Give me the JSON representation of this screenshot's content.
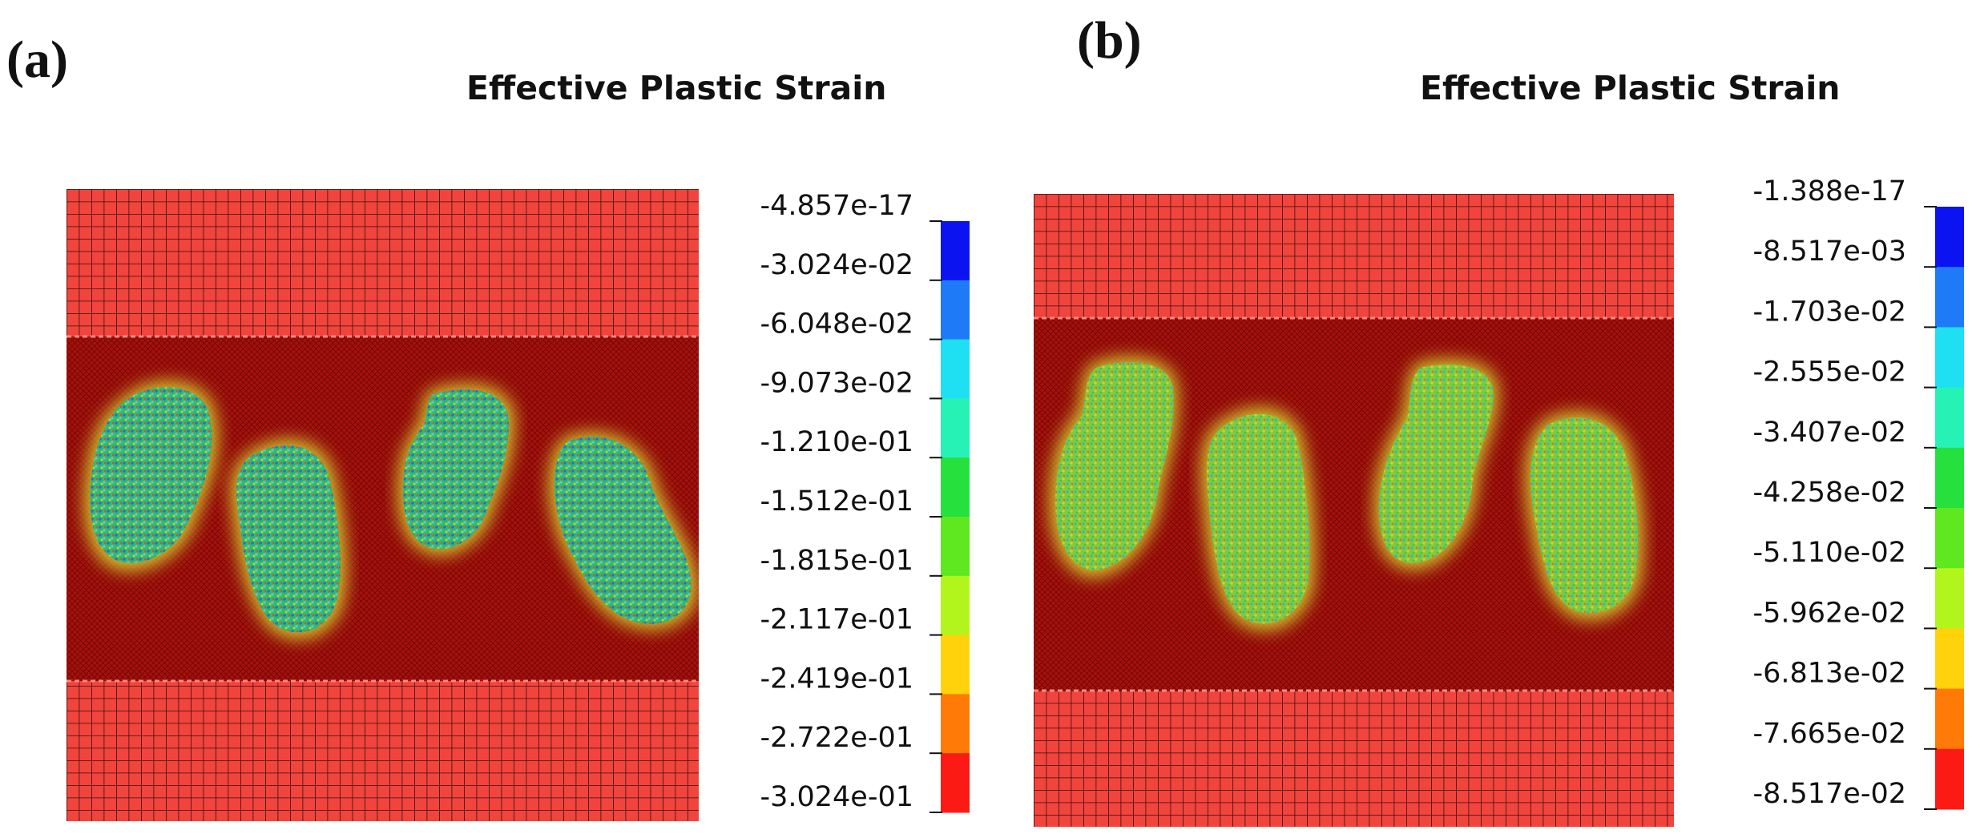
{
  "panels": [
    {
      "letter": "(a)",
      "title": "Effective Plastic Strain",
      "legend": {
        "labels": [
          "-4.857e-17",
          "-3.024e-02",
          "-6.048e-02",
          "-9.073e-02",
          "-1.210e-01",
          "-1.512e-01",
          "-1.815e-01",
          "-2.117e-01",
          "-2.419e-01",
          "-2.722e-01",
          "-3.024e-01"
        ],
        "colors": [
          "#0b14f0",
          "#1f7af7",
          "#1ee0f2",
          "#27f2b6",
          "#26e03d",
          "#5fe820",
          "#b2f51c",
          "#ffd20b",
          "#ff7a06",
          "#fb1b14"
        ]
      }
    },
    {
      "letter": "(b)",
      "title": "Effective Plastic Strain",
      "legend": {
        "labels": [
          "-1.388e-17",
          "-8.517e-03",
          "-1.703e-02",
          "-2.555e-02",
          "-3.407e-02",
          "-4.258e-02",
          "-5.110e-02",
          "-5.962e-02",
          "-6.813e-02",
          "-7.665e-02",
          "-8.517e-02"
        ],
        "colors": [
          "#0b14f0",
          "#1f7af7",
          "#1ee0f2",
          "#27f2b6",
          "#26e03d",
          "#5fe820",
          "#b2f51c",
          "#ffd20b",
          "#ff7a06",
          "#fb1b14"
        ]
      }
    }
  ]
}
